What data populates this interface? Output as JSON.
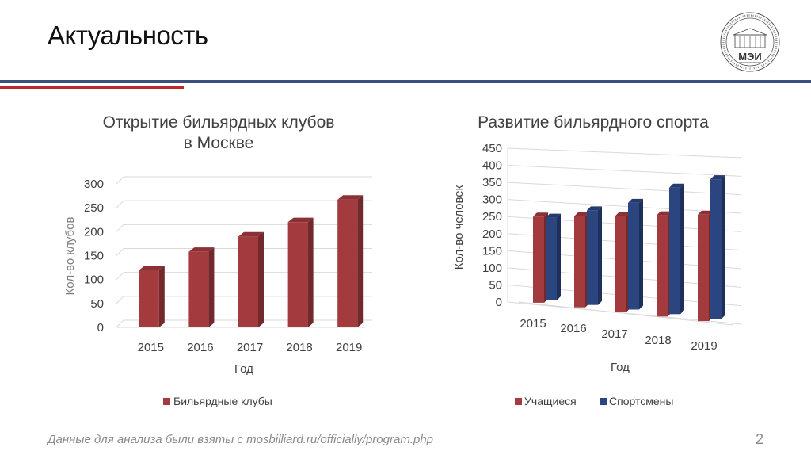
{
  "slide": {
    "title": "Актуальность",
    "logo_text": "МЭИ",
    "footer": "Данные для анализа были взяты с mosbilliard.ru/officially/program.php",
    "page_number": "2"
  },
  "colors": {
    "red_series": "#a33a3e",
    "blue_series": "#2b4580",
    "accent_blue": "#3b4f7c",
    "accent_red": "#c0272d"
  },
  "chart_data": [
    {
      "type": "bar",
      "title": "Открытие бильярдных клубов\nв Москве",
      "xlabel": "Год",
      "ylabel": "Кол-во клубов",
      "categories": [
        "2015",
        "2016",
        "2017",
        "2018",
        "2019"
      ],
      "series": [
        {
          "name": "Бильярдные клубы",
          "values": [
            120,
            158,
            190,
            220,
            267
          ],
          "color": "#a33a3e"
        }
      ],
      "ylim": [
        0,
        300
      ],
      "yticks": [
        0,
        50,
        100,
        150,
        200,
        250,
        300
      ],
      "grid": true,
      "legend": "bottom"
    },
    {
      "type": "bar",
      "title": "Развитие бильярдного спорта",
      "xlabel": "Год",
      "ylabel": "Кол-во человек",
      "categories": [
        "2015",
        "2016",
        "2017",
        "2018",
        "2019"
      ],
      "series": [
        {
          "name": "Учащиеся",
          "values": [
            250,
            260,
            270,
            280,
            290
          ],
          "color": "#a33a3e"
        },
        {
          "name": "Спортсмены",
          "values": [
            240,
            270,
            300,
            350,
            380
          ],
          "color": "#2b4580"
        }
      ],
      "ylim": [
        0,
        450
      ],
      "yticks": [
        0,
        50,
        100,
        150,
        200,
        250,
        300,
        350,
        400,
        450
      ],
      "grid": true,
      "legend": "bottom"
    }
  ]
}
